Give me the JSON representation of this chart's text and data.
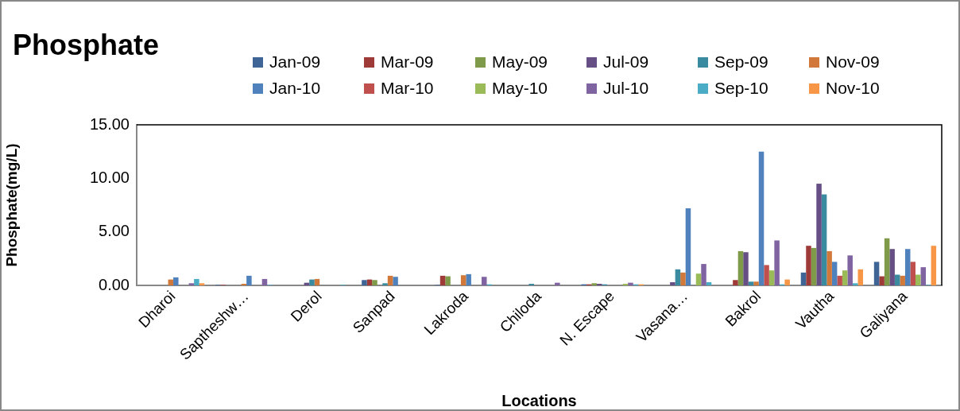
{
  "chart_data": {
    "type": "bar",
    "title": "Phosphate",
    "xlabel": "Locations",
    "ylabel": "Phosphate(mg/L)",
    "categories": [
      "Dharoi",
      "Saptheshw…",
      "Derol",
      "Sanpad",
      "Lakroda",
      "Chiloda",
      "N. Escape",
      "Vasana…",
      "Bakrol",
      "Vautha",
      "Galiyana"
    ],
    "ylim": [
      0,
      15
    ],
    "yticks": [
      {
        "value": 0,
        "label": "0.00"
      },
      {
        "value": 5,
        "label": "5.00"
      },
      {
        "value": 10,
        "label": "10.00"
      },
      {
        "value": 15,
        "label": "15.00"
      }
    ],
    "grid": false,
    "legend": "top right",
    "series": [
      {
        "name": "Jan-09",
        "color": "#3f6596",
        "values": [
          0,
          0.05,
          0,
          0.5,
          0.05,
          0,
          0.1,
          0,
          0,
          1.2,
          2.2
        ]
      },
      {
        "name": "Mar-09",
        "color": "#9e3b38",
        "values": [
          0,
          0.05,
          0,
          0.55,
          0.9,
          0,
          0.1,
          0,
          0.5,
          3.7,
          0.85
        ]
      },
      {
        "name": "May-09",
        "color": "#7f9a48",
        "values": [
          0,
          0,
          0,
          0.5,
          0.85,
          0,
          0.2,
          0,
          3.2,
          3.5,
          4.4
        ]
      },
      {
        "name": "Jul-09",
        "color": "#664f84",
        "values": [
          0,
          0,
          0.25,
          0,
          0,
          0,
          0.15,
          0.3,
          3.1,
          9.5,
          3.4
        ]
      },
      {
        "name": "Sep-09",
        "color": "#3a8aa0",
        "values": [
          0,
          0,
          0.55,
          0.2,
          0,
          0.15,
          0.1,
          1.5,
          0.35,
          8.5,
          1.0
        ]
      },
      {
        "name": "Nov-09",
        "color": "#d0793a",
        "values": [
          0.55,
          0.15,
          0.6,
          0.9,
          0.95,
          0,
          0,
          1.2,
          0.35,
          3.2,
          0.9
        ]
      },
      {
        "name": "Jan-10",
        "color": "#4f81bd",
        "values": [
          0.75,
          0.9,
          0,
          0.8,
          1.05,
          0,
          0,
          7.2,
          12.5,
          2.2,
          3.4
        ]
      },
      {
        "name": "Mar-10",
        "color": "#c0504d",
        "values": [
          0,
          0,
          0,
          0,
          0,
          0,
          0,
          0,
          1.9,
          0.9,
          2.2
        ]
      },
      {
        "name": "May-10",
        "color": "#9bbb59",
        "values": [
          0,
          0,
          0,
          0,
          0,
          0,
          0.15,
          1.1,
          1.4,
          1.4,
          1.0
        ]
      },
      {
        "name": "Jul-10",
        "color": "#8064a2",
        "values": [
          0.2,
          0.6,
          0,
          0,
          0.8,
          0.25,
          0.25,
          2.0,
          4.2,
          2.8,
          1.7
        ]
      },
      {
        "name": "Sep-10",
        "color": "#4bacc6",
        "values": [
          0.6,
          0.05,
          0.05,
          0,
          0.1,
          0,
          0.1,
          0.3,
          0.1,
          0.2,
          0.05
        ]
      },
      {
        "name": "Nov-10",
        "color": "#f79646",
        "values": [
          0.2,
          0,
          0,
          0,
          0,
          0,
          0.1,
          0,
          0.55,
          1.5,
          3.7
        ]
      }
    ]
  }
}
